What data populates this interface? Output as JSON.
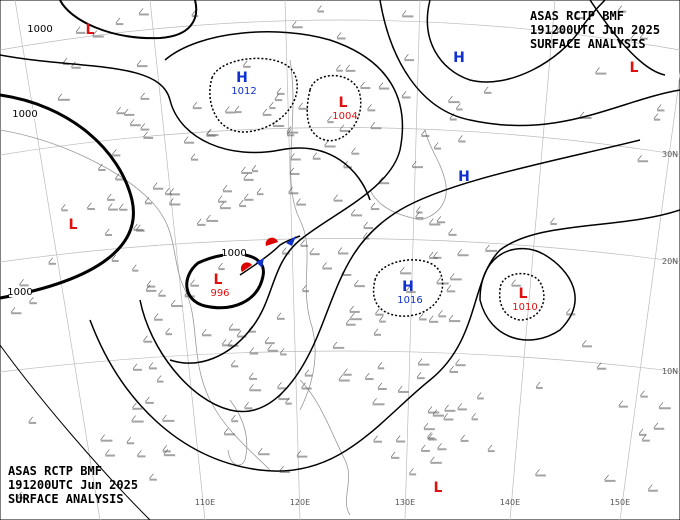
{
  "headers": {
    "top": [
      "ASAS   RCTP   BMF",
      "191200UTC   Jun   2025",
      "SURFACE ANALYSIS"
    ],
    "bottom": [
      "ASAS   RCTP   BMF",
      "191200UTC   Jun   2025",
      "SURFACE ANALYSIS"
    ]
  },
  "centers": [
    {
      "label": "L"
    },
    {
      "label": "H",
      "value": 1012
    },
    {
      "label": "L",
      "value": 1004
    },
    {
      "label": "H"
    },
    {
      "label": "L"
    },
    {
      "label": "H"
    },
    {
      "label": "L"
    },
    {
      "label": "L",
      "value": 996
    },
    {
      "label": "H",
      "value": 1016
    },
    {
      "label": "L",
      "value": 1010
    },
    {
      "label": "L"
    }
  ],
  "isobar_labels": [
    "1000",
    "1000",
    "1000",
    "1000"
  ],
  "lat_labels": [
    "30N",
    "20N",
    "10N"
  ],
  "lon_labels": [
    "110E",
    "120E",
    "130E",
    "140E",
    "150E"
  ]
}
